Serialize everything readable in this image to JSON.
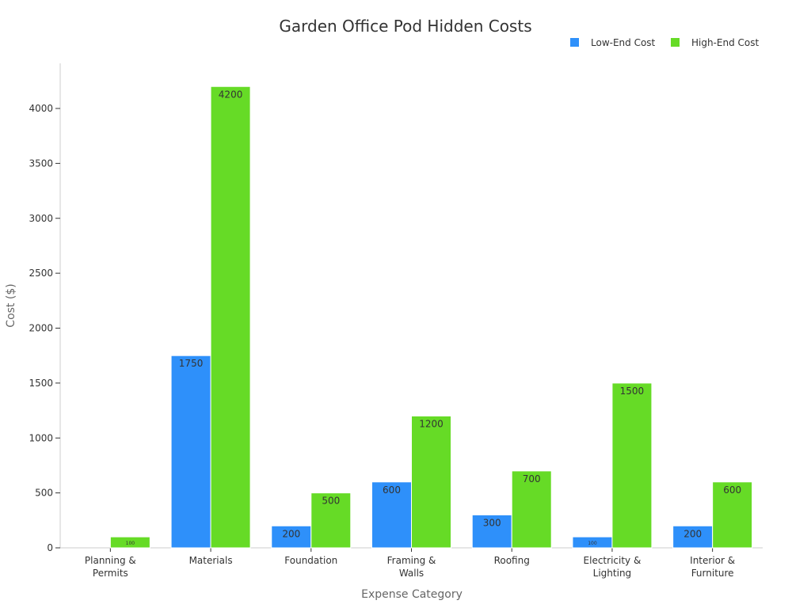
{
  "chart_data": {
    "type": "bar",
    "title": "Garden Office Pod Hidden Costs",
    "xlabel": "Expense Category",
    "ylabel": "Cost ($)",
    "categories": [
      [
        "Planning &",
        "Permits"
      ],
      [
        "Materials"
      ],
      [
        "Foundation"
      ],
      [
        "Framing &",
        "Walls"
      ],
      [
        "Roofing"
      ],
      [
        "Electricity &",
        "Lighting"
      ],
      [
        "Interior &",
        "Furniture"
      ]
    ],
    "series": [
      {
        "name": "Low-End Cost",
        "color": "#2E90FA",
        "values": [
          0,
          1750,
          200,
          600,
          300,
          100,
          200
        ]
      },
      {
        "name": "High-End Cost",
        "color": "#66DB26",
        "values": [
          100,
          4200,
          500,
          1200,
          700,
          1500,
          600
        ]
      }
    ],
    "ylim": [
      0,
      4400
    ],
    "yticks": [
      0,
      500,
      1000,
      1500,
      2000,
      2500,
      3000,
      3500,
      4000
    ],
    "legend_position": "top-right",
    "grid": false
  }
}
